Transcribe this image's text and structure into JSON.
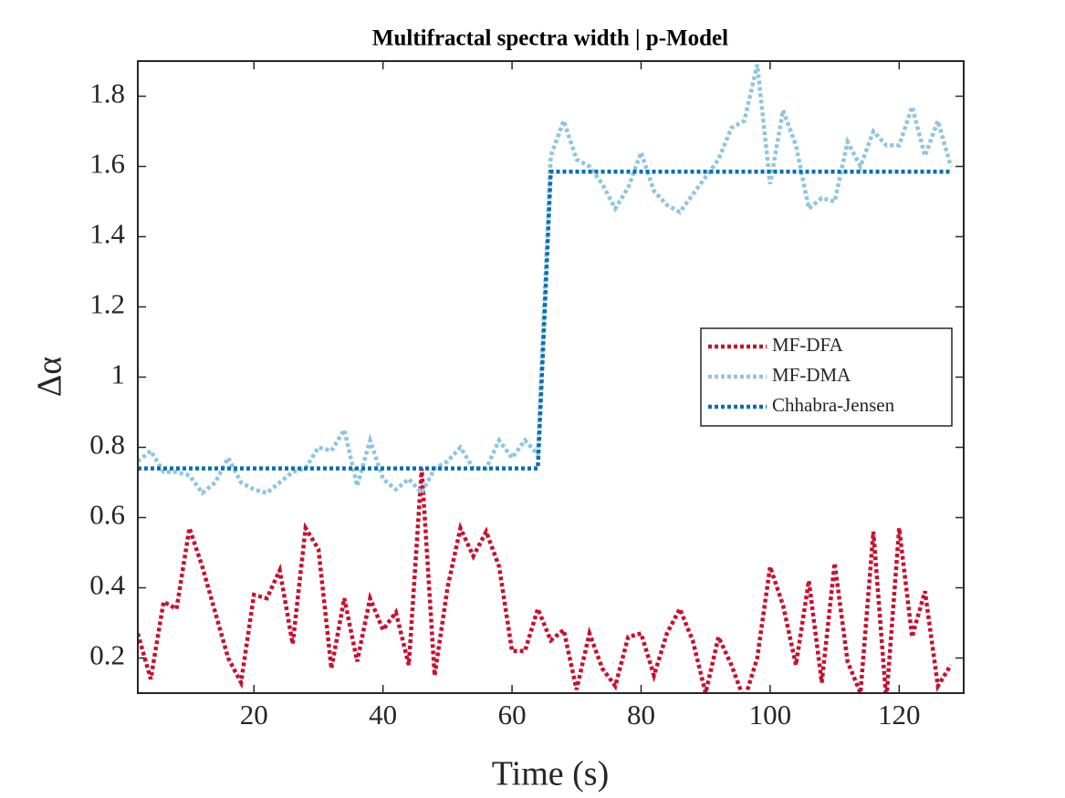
{
  "chart_data": {
    "type": "line",
    "title": "Multifractal spectra width | p-Model",
    "x_label": "Time (s)",
    "y_label": "Δα",
    "x": [
      2,
      4,
      6,
      8,
      10,
      12,
      14,
      16,
      18,
      20,
      22,
      24,
      26,
      28,
      30,
      32,
      34,
      36,
      38,
      40,
      42,
      44,
      46,
      48,
      50,
      52,
      54,
      56,
      58,
      60,
      62,
      64,
      66,
      68,
      70,
      72,
      74,
      76,
      78,
      80,
      82,
      84,
      86,
      88,
      90,
      92,
      94,
      96,
      98,
      100,
      102,
      104,
      106,
      108,
      110,
      112,
      114,
      116,
      118,
      120,
      122,
      124,
      126,
      128
    ],
    "series": [
      {
        "name": "MF-DFA",
        "color": "#c8102e",
        "values": [
          0.27,
          0.14,
          0.36,
          0.34,
          0.57,
          0.46,
          0.33,
          0.2,
          0.13,
          0.38,
          0.37,
          0.45,
          0.24,
          0.57,
          0.51,
          0.17,
          0.37,
          0.19,
          0.37,
          0.28,
          0.33,
          0.18,
          0.74,
          0.15,
          0.4,
          0.57,
          0.49,
          0.56,
          0.46,
          0.22,
          0.22,
          0.34,
          0.25,
          0.28,
          0.11,
          0.27,
          0.17,
          0.12,
          0.26,
          0.27,
          0.15,
          0.27,
          0.34,
          0.25,
          0.1,
          0.26,
          0.18,
          0.08,
          0.2,
          0.46,
          0.35,
          0.18,
          0.42,
          0.13,
          0.47,
          0.19,
          0.1,
          0.56,
          0.08,
          0.57,
          0.26,
          0.39,
          0.12,
          0.18
        ]
      },
      {
        "name": "MF-DMA",
        "color": "#8ec5e3",
        "values": [
          0.76,
          0.79,
          0.73,
          0.73,
          0.72,
          0.67,
          0.7,
          0.77,
          0.7,
          0.68,
          0.67,
          0.7,
          0.73,
          0.74,
          0.8,
          0.79,
          0.85,
          0.69,
          0.82,
          0.71,
          0.68,
          0.71,
          0.67,
          0.74,
          0.76,
          0.8,
          0.74,
          0.74,
          0.82,
          0.77,
          0.82,
          0.78,
          1.63,
          1.73,
          1.62,
          1.6,
          1.55,
          1.48,
          1.54,
          1.64,
          1.53,
          1.49,
          1.47,
          1.52,
          1.57,
          1.62,
          1.71,
          1.73,
          1.89,
          1.55,
          1.76,
          1.66,
          1.48,
          1.51,
          1.5,
          1.67,
          1.6,
          1.7,
          1.66,
          1.66,
          1.77,
          1.63,
          1.73,
          1.6
        ]
      },
      {
        "name": "Chhabra-Jensen",
        "color": "#0a6fae",
        "values": [
          0.74,
          0.74,
          0.74,
          0.74,
          0.74,
          0.74,
          0.74,
          0.74,
          0.74,
          0.74,
          0.74,
          0.74,
          0.74,
          0.74,
          0.74,
          0.74,
          0.74,
          0.74,
          0.74,
          0.74,
          0.74,
          0.74,
          0.74,
          0.74,
          0.74,
          0.74,
          0.74,
          0.74,
          0.74,
          0.74,
          0.74,
          0.74,
          1.585,
          1.585,
          1.585,
          1.585,
          1.585,
          1.585,
          1.585,
          1.585,
          1.585,
          1.585,
          1.585,
          1.585,
          1.585,
          1.585,
          1.585,
          1.585,
          1.585,
          1.585,
          1.585,
          1.585,
          1.585,
          1.585,
          1.585,
          1.585,
          1.585,
          1.585,
          1.585,
          1.585,
          1.585,
          1.585,
          1.585,
          1.585
        ]
      }
    ],
    "xlim": [
      2,
      130
    ],
    "xticks": [
      20,
      40,
      60,
      80,
      100,
      120
    ],
    "ylim": [
      0.1,
      1.9
    ],
    "yticks": [
      0.2,
      0.4,
      0.6,
      0.8,
      1,
      1.2,
      1.4,
      1.6,
      1.8
    ],
    "legend": "right"
  }
}
